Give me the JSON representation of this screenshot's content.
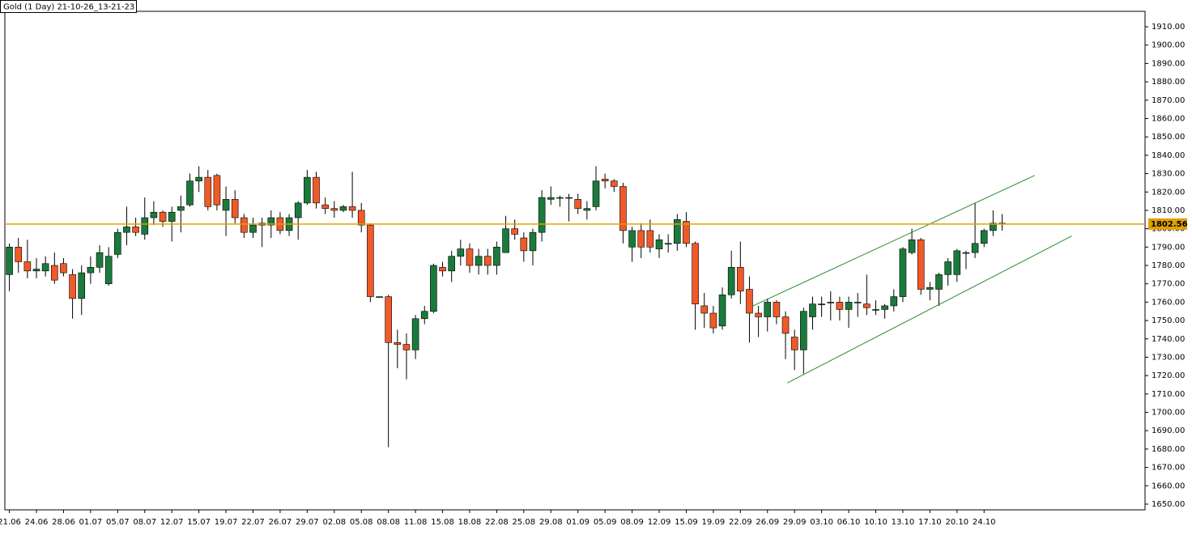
{
  "chart_data": {
    "type": "candlestick",
    "title": "Gold (1 Day) 21-10-26_13-21-23",
    "categories": [
      "21.06",
      null,
      null,
      "24.06",
      null,
      null,
      "28.06",
      null,
      null,
      "01.07",
      null,
      null,
      "05.07",
      null,
      null,
      "08.07",
      null,
      null,
      "12.07",
      null,
      null,
      "15.07",
      null,
      null,
      "19.07",
      null,
      null,
      "22.07",
      null,
      null,
      "26.07",
      null,
      null,
      "29.07",
      null,
      null,
      "02.08",
      null,
      null,
      "05.08",
      null,
      null,
      "08.08",
      null,
      null,
      "11.08",
      null,
      null,
      "15.08",
      null,
      null,
      "18.08",
      null,
      null,
      "22.08",
      null,
      null,
      "25.08",
      null,
      null,
      "29.08",
      null,
      null,
      "01.09",
      null,
      null,
      "05.09",
      null,
      null,
      "08.09",
      null,
      null,
      "12.09",
      null,
      null,
      "15.09",
      null,
      null,
      "19.09",
      null,
      null,
      "22.09",
      null,
      null,
      "26.09",
      null,
      null,
      "29.09",
      null,
      null,
      "03.10",
      null,
      null,
      "06.10",
      null,
      null,
      "10.10",
      null,
      null,
      "13.10",
      null,
      null,
      "17.10",
      null,
      null,
      "20.10",
      null,
      null,
      "24.10",
      null,
      null
    ],
    "open": [
      1775,
      1790,
      1782,
      1777,
      1777,
      1780,
      1781,
      1775,
      1762,
      1776,
      1779,
      1770,
      1786,
      1798,
      1801,
      1797,
      1806,
      1809,
      1804,
      1810,
      1813,
      1826,
      1828,
      1829,
      1810,
      1816,
      1806,
      1798,
      1802,
      1802,
      1806,
      1799,
      1806,
      1814,
      1828,
      1813,
      1811,
      1810,
      1812,
      1810,
      1802,
      1763,
      1763,
      1738,
      1737,
      1734,
      1751,
      1755,
      1779,
      1777,
      1785,
      1789,
      1780,
      1785,
      1780,
      1787,
      1800,
      1795,
      1788,
      1798,
      1816,
      1817,
      1817,
      1816,
      1810,
      1812,
      1827,
      1826,
      1823,
      1790,
      1799,
      1799,
      1789,
      1792,
      1792,
      1804,
      1792,
      1758,
      1754,
      1747,
      1764,
      1779,
      1767,
      1754,
      1752,
      1760,
      1752,
      1741,
      1734,
      1752,
      1759,
      1760,
      1760,
      1756,
      1760,
      1759,
      1756,
      1756,
      1758,
      1763,
      1787,
      1794,
      1767,
      1767,
      1775,
      1775,
      1787,
      1787,
      1792,
      1799,
      1803
    ],
    "high": [
      1792,
      1795,
      1794,
      1784,
      1785,
      1787,
      1784,
      1778,
      1780,
      1785,
      1791,
      1790,
      1800,
      1812,
      1806,
      1817,
      1815,
      1810,
      1812,
      1818,
      1830,
      1834,
      1832,
      1830,
      1823,
      1821,
      1808,
      1806,
      1806,
      1810,
      1809,
      1808,
      1815,
      1832,
      1831,
      1817,
      1815,
      1813,
      1831,
      1814,
      1803,
      1763,
      1764,
      1745,
      1743,
      1753,
      1758,
      1781,
      1782,
      1788,
      1794,
      1792,
      1789,
      1789,
      1793,
      1807,
      1805,
      1798,
      1800,
      1821,
      1823,
      1818,
      1819,
      1819,
      1815,
      1834,
      1830,
      1827,
      1825,
      1801,
      1803,
      1805,
      1797,
      1797,
      1808,
      1809,
      1793,
      1765,
      1758,
      1768,
      1788,
      1793,
      1774,
      1758,
      1762,
      1761,
      1755,
      1745,
      1757,
      1763,
      1763,
      1766,
      1763,
      1763,
      1765,
      1775,
      1761,
      1759,
      1767,
      1790,
      1800,
      1795,
      1771,
      1776,
      1784,
      1789,
      1788,
      1814,
      1800,
      1810,
      1808
    ],
    "low": [
      1766,
      1776,
      1773,
      1773,
      1774,
      1770,
      1774,
      1751,
      1753,
      1770,
      1776,
      1769,
      1784,
      1791,
      1796,
      1794,
      1802,
      1801,
      1793,
      1798,
      1812,
      1820,
      1810,
      1810,
      1796,
      1803,
      1795,
      1795,
      1790,
      1795,
      1797,
      1796,
      1794,
      1813,
      1811,
      1808,
      1806,
      1809,
      1806,
      1798,
      1760,
      1763,
      1681,
      1724,
      1718,
      1729,
      1748,
      1754,
      1774,
      1771,
      1780,
      1776,
      1775,
      1775,
      1775,
      1787,
      1794,
      1782,
      1780,
      1793,
      1813,
      1812,
      1804,
      1808,
      1805,
      1810,
      1822,
      1820,
      1792,
      1782,
      1784,
      1787,
      1784,
      1787,
      1788,
      1790,
      1745,
      1746,
      1743,
      1745,
      1762,
      1759,
      1738,
      1741,
      1744,
      1748,
      1729,
      1723,
      1721,
      1745,
      1752,
      1750,
      1750,
      1746,
      1752,
      1753,
      1753,
      1751,
      1755,
      1760,
      1786,
      1764,
      1761,
      1758,
      1769,
      1771,
      1778,
      1784,
      1790,
      1796,
      1799
    ],
    "close": [
      1790,
      1782,
      1777,
      1778,
      1781,
      1772,
      1776,
      1762,
      1776,
      1779,
      1787,
      1785,
      1798,
      1801,
      1798,
      1806,
      1809,
      1804,
      1809,
      1812,
      1826,
      1828,
      1812,
      1813,
      1816,
      1806,
      1798,
      1802,
      1803,
      1806,
      1799,
      1806,
      1814,
      1828,
      1814,
      1811,
      1810,
      1812,
      1810,
      1802,
      1763,
      1763,
      1738,
      1737,
      1734,
      1751,
      1755,
      1780,
      1777,
      1785,
      1789,
      1780,
      1785,
      1780,
      1790,
      1800,
      1797,
      1788,
      1798,
      1817,
      1817,
      1817,
      1817,
      1811,
      1811,
      1826,
      1826,
      1823,
      1799,
      1799,
      1790,
      1790,
      1794,
      1792,
      1805,
      1792,
      1759,
      1754,
      1746,
      1764,
      1779,
      1766,
      1754,
      1752,
      1760,
      1752,
      1743,
      1734,
      1755,
      1759,
      1759,
      1760,
      1756,
      1760,
      1760,
      1757,
      1756,
      1758,
      1763,
      1789,
      1794,
      1767,
      1768,
      1775,
      1782,
      1788,
      1787,
      1792,
      1799,
      1803,
      1803
    ],
    "up_color": "#1a7a3c",
    "down_color": "#f05a28",
    "hline": {
      "value": 1802.56,
      "color": "#e0a000"
    },
    "channels": [
      {
        "x": [
          82.4,
          113.6
        ],
        "y": [
          1758,
          1829
        ]
      },
      {
        "x": [
          86.2,
          117.7
        ],
        "y": [
          1716,
          1796
        ]
      }
    ],
    "channel_color": "#2b8a2b",
    "ylim": [
      1646.9,
      1918.4
    ],
    "yticks": [
      {
        "value": 1650,
        "label": "1650.00"
      },
      {
        "value": 1660,
        "label": "1660.00"
      },
      {
        "value": 1670,
        "label": "1670.00"
      },
      {
        "value": 1680,
        "label": "1680.00"
      },
      {
        "value": 1690,
        "label": "1690.00"
      },
      {
        "value": 1700,
        "label": "1700.00"
      },
      {
        "value": 1710,
        "label": "1710.00"
      },
      {
        "value": 1720,
        "label": "1720.00"
      },
      {
        "value": 1730,
        "label": "1730.00"
      },
      {
        "value": 1740,
        "label": "1740.00"
      },
      {
        "value": 1750,
        "label": "1750.00"
      },
      {
        "value": 1760,
        "label": "1760.00"
      },
      {
        "value": 1770,
        "label": "1770.00"
      },
      {
        "value": 1780,
        "label": "1780.00"
      },
      {
        "value": 1790,
        "label": "1790.00"
      },
      {
        "value": 1800,
        "label": "1800.00"
      },
      {
        "value": 1810,
        "label": "1810.00"
      },
      {
        "value": 1820,
        "label": "1820.00"
      },
      {
        "value": 1830,
        "label": "1830.00"
      },
      {
        "value": 1840,
        "label": "1840.00"
      },
      {
        "value": 1850,
        "label": "1850.00"
      },
      {
        "value": 1860,
        "label": "1860.00"
      },
      {
        "value": 1870,
        "label": "1870.00"
      },
      {
        "value": 1880,
        "label": "1880.00"
      },
      {
        "value": 1890,
        "label": "1890.00"
      },
      {
        "value": 1900,
        "label": "1900.00"
      },
      {
        "value": 1910,
        "label": "1910.00"
      }
    ]
  }
}
